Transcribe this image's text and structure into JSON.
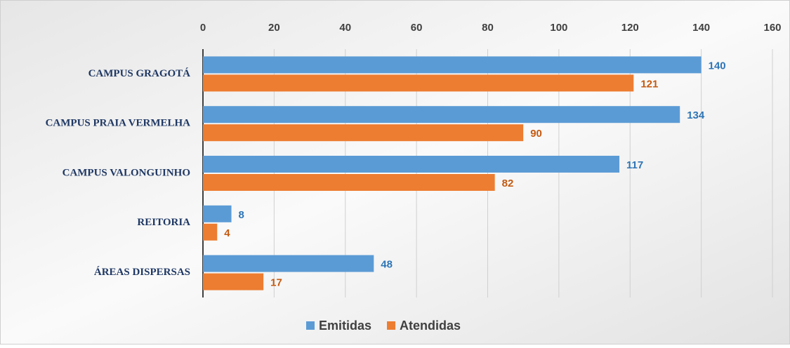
{
  "chart_data": {
    "type": "hbar",
    "categories": [
      "CAMPUS GRAGOTÁ",
      "CAMPUS PRAIA VERMELHA",
      "CAMPUS VALONGUINHO",
      "REITORIA",
      "ÁREAS DISPERSAS"
    ],
    "series": [
      {
        "name": "Emitidas",
        "color": "#5b9bd5",
        "label_color": "#2e75b6",
        "values": [
          140,
          134,
          117,
          8,
          48
        ]
      },
      {
        "name": "Atendidas",
        "color": "#ed7d31",
        "label_color": "#c55a11",
        "values": [
          121,
          90,
          82,
          4,
          17
        ]
      }
    ],
    "xlim": [
      0,
      160
    ],
    "xticks": [
      0,
      20,
      40,
      60,
      80,
      100,
      120,
      140,
      160
    ],
    "grid": true,
    "legend": "bottom"
  }
}
